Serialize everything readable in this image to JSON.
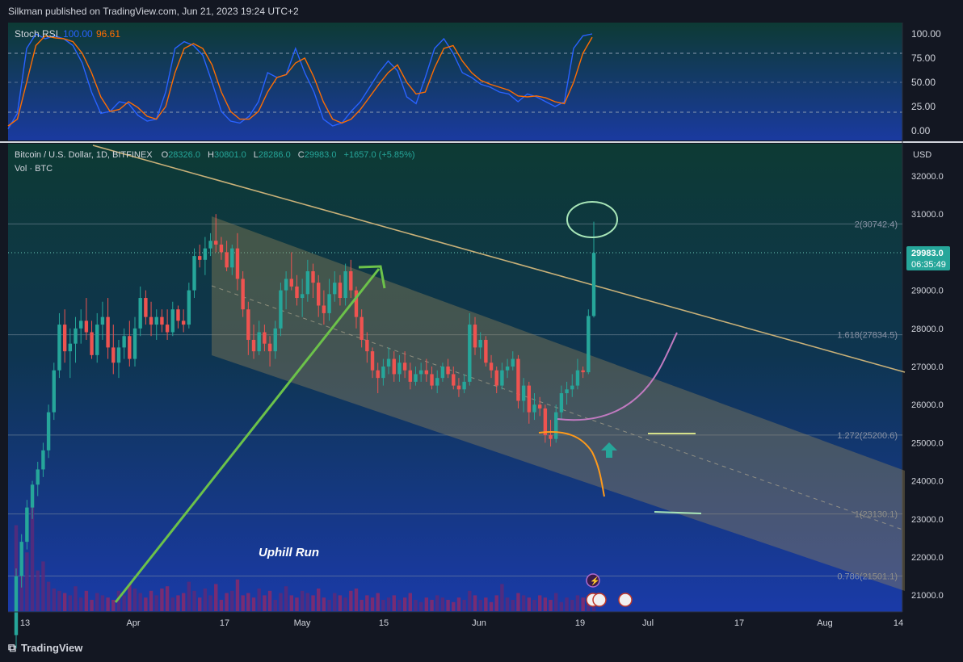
{
  "header": {
    "published": "Silkman published on TradingView.com, Jun 21, 2023 19:24 UTC+2"
  },
  "footer": {
    "brand": "TradingView"
  },
  "rsi": {
    "label": "Stoch RSI",
    "k_value": "100.00",
    "d_value": "96.61",
    "k_color": "#2962ff",
    "d_color": "#ff6d00",
    "axis": [
      "100.00",
      "75.00",
      "50.00",
      "25.00",
      "0.00"
    ]
  },
  "main": {
    "symbol_line": "Bitcoin / U.S. Dollar, 1D, BITFINEX",
    "o_label": "O",
    "o_value": "28326.0",
    "h_label": "H",
    "h_value": "30801.0",
    "l_label": "L",
    "l_value": "28286.0",
    "c_label": "C",
    "c_value": "29983.0",
    "change": "+1657.0 (+5.85%)",
    "vol_label": "Vol · BTC",
    "currency": "USD",
    "price_tag": "29983.0",
    "countdown": "06:35:49",
    "annotation": "Uphill Run",
    "up_color": "#26a69a",
    "down_color": "#ef5350"
  },
  "chart_data": {
    "type": "candlestick",
    "symbol": "Bitcoin / U.S. Dollar",
    "timeframe": "1D",
    "exchange": "BITFINEX",
    "y_ticks": [
      32000,
      31000,
      30000,
      29000,
      28000,
      27000,
      26000,
      25000,
      24000,
      23000,
      22000,
      21000
    ],
    "y_tick_labels": [
      "32000.0",
      "31000.0",
      "30000.0",
      "29000.0",
      "28000.0",
      "27000.0",
      "26000.0",
      "25000.0",
      "24000.0",
      "23000.0",
      "22000.0",
      "21000.0"
    ],
    "x_tick_labels": [
      "13",
      "Apr",
      "17",
      "May",
      "15",
      "Jun",
      "19",
      "Jul",
      "17",
      "Aug",
      "14"
    ],
    "fib_levels": [
      {
        "label": "2(30742.4)",
        "value": 30742.4
      },
      {
        "label": "1.618(27834.5)",
        "value": 27834.5
      },
      {
        "label": "1.272(25200.6)",
        "value": 25200.6
      },
      {
        "label": "1(23130.1)",
        "value": 23130.1
      },
      {
        "label": "0.786(21501.1)",
        "value": 21501.1
      }
    ],
    "last_candle": {
      "open": 28326.0,
      "high": 30801.0,
      "low": 28286.0,
      "close": 29983.0
    },
    "candles": [
      [
        19950,
        21700,
        19600,
        21500
      ],
      [
        21500,
        22600,
        21200,
        22400
      ],
      [
        22400,
        23500,
        22200,
        23300
      ],
      [
        23300,
        24000,
        23000,
        23900
      ],
      [
        23900,
        24500,
        23600,
        24300
      ],
      [
        24300,
        25000,
        24100,
        24800
      ],
      [
        24800,
        26000,
        24600,
        25800
      ],
      [
        25800,
        27100,
        25600,
        26900
      ],
      [
        26900,
        28400,
        26700,
        28100
      ],
      [
        28100,
        28500,
        27100,
        27400
      ],
      [
        27400,
        28000,
        26700,
        27600
      ],
      [
        27600,
        28300,
        27100,
        28000
      ],
      [
        28000,
        28500,
        27600,
        28200
      ],
      [
        28200,
        28800,
        27700,
        27900
      ],
      [
        27900,
        28200,
        27200,
        27300
      ],
      [
        27300,
        28400,
        27100,
        28100
      ],
      [
        28100,
        28700,
        27700,
        28300
      ],
      [
        28300,
        28800,
        27200,
        27500
      ],
      [
        27500,
        28100,
        26800,
        27100
      ],
      [
        27100,
        27700,
        26700,
        27500
      ],
      [
        27500,
        28000,
        27200,
        27800
      ],
      [
        27800,
        28200,
        27000,
        27200
      ],
      [
        27200,
        28300,
        27000,
        28000
      ],
      [
        28000,
        29100,
        27800,
        28800
      ],
      [
        28800,
        29000,
        28100,
        28300
      ],
      [
        28300,
        28700,
        27800,
        28100
      ],
      [
        28100,
        28500,
        27700,
        28300
      ],
      [
        28300,
        28500,
        27900,
        28100
      ],
      [
        28100,
        28500,
        27700,
        27900
      ],
      [
        27900,
        28700,
        27800,
        28500
      ],
      [
        28500,
        28600,
        28000,
        28200
      ],
      [
        28200,
        28500,
        27900,
        28100
      ],
      [
        28100,
        29200,
        28000,
        29000
      ],
      [
        29000,
        30100,
        28800,
        29900
      ],
      [
        29900,
        30200,
        29600,
        29800
      ],
      [
        29800,
        30400,
        29400,
        30100
      ],
      [
        30100,
        30500,
        29900,
        30300
      ],
      [
        30300,
        31000,
        30000,
        30200
      ],
      [
        30200,
        30400,
        29800,
        30000
      ],
      [
        30000,
        30300,
        29500,
        29600
      ],
      [
        29600,
        30200,
        29400,
        30100
      ],
      [
        30100,
        30500,
        29000,
        29300
      ],
      [
        29300,
        29500,
        28300,
        28500
      ],
      [
        28500,
        28700,
        27300,
        27700
      ],
      [
        27700,
        28100,
        27200,
        27400
      ],
      [
        27400,
        28200,
        27300,
        27900
      ],
      [
        27900,
        28100,
        27400,
        27600
      ],
      [
        27600,
        27800,
        27000,
        27400
      ],
      [
        27400,
        28200,
        27200,
        28000
      ],
      [
        28000,
        29200,
        27800,
        29000
      ],
      [
        29000,
        29500,
        28500,
        29300
      ],
      [
        29300,
        30000,
        29000,
        29100
      ],
      [
        29100,
        29400,
        28600,
        28800
      ],
      [
        28800,
        29300,
        28300,
        28900
      ],
      [
        28900,
        29800,
        28700,
        29500
      ],
      [
        29500,
        29700,
        28800,
        29200
      ],
      [
        29200,
        29400,
        28300,
        28600
      ],
      [
        28600,
        29000,
        28100,
        28400
      ],
      [
        28400,
        29300,
        28200,
        28900
      ],
      [
        28900,
        29500,
        28700,
        29200
      ],
      [
        29200,
        29400,
        28600,
        28800
      ],
      [
        28800,
        29700,
        28600,
        29500
      ],
      [
        29500,
        29800,
        28800,
        29000
      ],
      [
        29000,
        29100,
        28000,
        28300
      ],
      [
        28300,
        28500,
        27500,
        27700
      ],
      [
        27700,
        27900,
        27100,
        27400
      ],
      [
        27400,
        27500,
        26700,
        26900
      ],
      [
        26900,
        27100,
        26300,
        26700
      ],
      [
        26700,
        27200,
        26500,
        27000
      ],
      [
        27000,
        27500,
        26800,
        27200
      ],
      [
        27200,
        27400,
        26600,
        26800
      ],
      [
        26800,
        27300,
        26600,
        27100
      ],
      [
        27100,
        27400,
        26700,
        26900
      ],
      [
        26900,
        27100,
        26400,
        26600
      ],
      [
        26600,
        27000,
        26500,
        26800
      ],
      [
        26800,
        27100,
        26600,
        26900
      ],
      [
        26900,
        27200,
        26600,
        26800
      ],
      [
        26800,
        27000,
        26400,
        26500
      ],
      [
        26500,
        26900,
        26300,
        26700
      ],
      [
        26700,
        27100,
        26600,
        27000
      ],
      [
        27000,
        27200,
        26700,
        26800
      ],
      [
        26800,
        27000,
        26400,
        26500
      ],
      [
        26500,
        26700,
        26200,
        26400
      ],
      [
        26400,
        26800,
        26300,
        26600
      ],
      [
        26600,
        28400,
        26500,
        28100
      ],
      [
        28100,
        28300,
        27300,
        27500
      ],
      [
        27500,
        27900,
        27200,
        27700
      ],
      [
        27700,
        27800,
        27000,
        27100
      ],
      [
        27100,
        27300,
        26700,
        26900
      ],
      [
        26900,
        27000,
        26300,
        26500
      ],
      [
        26500,
        27100,
        26400,
        26900
      ],
      [
        26900,
        27200,
        26700,
        27000
      ],
      [
        27000,
        27400,
        26900,
        27200
      ],
      [
        27200,
        27300,
        25900,
        26100
      ],
      [
        26100,
        26700,
        25800,
        26500
      ],
      [
        26500,
        26600,
        25500,
        25800
      ],
      [
        25800,
        26300,
        25600,
        26000
      ],
      [
        26000,
        26200,
        25700,
        25900
      ],
      [
        25900,
        26000,
        25000,
        25200
      ],
      [
        25200,
        25600,
        24900,
        25100
      ],
      [
        25100,
        26000,
        25000,
        25800
      ],
      [
        25800,
        26500,
        25600,
        26300
      ],
      [
        26300,
        26600,
        26000,
        26400
      ],
      [
        26400,
        26800,
        26200,
        26500
      ],
      [
        26500,
        27200,
        26400,
        26900
      ],
      [
        26900,
        27000,
        26700,
        26850
      ],
      [
        26850,
        28500,
        26800,
        28326
      ],
      [
        28326,
        30801,
        28286,
        29983
      ]
    ],
    "volume": [
      3.8,
      1.6,
      2.6,
      5.5,
      1.8,
      2.2,
      1.3,
      1.0,
      0.9,
      0.8,
      0.7,
      1.1,
      0.6,
      0.9,
      0.5,
      0.8,
      0.7,
      0.6,
      0.5,
      0.9,
      0.7,
      1.2,
      1.0,
      0.8,
      0.6,
      0.9,
      0.7,
      1.0,
      1.1,
      0.6,
      0.7,
      0.8,
      1.3,
      0.9,
      0.6,
      1.0,
      0.7,
      1.2,
      0.5,
      0.8,
      0.9,
      1.4,
      0.7,
      0.8,
      0.6,
      1.0,
      0.7,
      0.9,
      0.5,
      0.8,
      1.1,
      0.7,
      0.6,
      0.9,
      0.8,
      0.7,
      1.0,
      0.6,
      0.5,
      0.8,
      0.7,
      0.6,
      0.9,
      1.0,
      0.5,
      0.7,
      0.6,
      0.8,
      0.5,
      0.6,
      0.7,
      0.5,
      0.6,
      0.8,
      0.5,
      0.4,
      0.6,
      0.5,
      0.7,
      0.6,
      0.5,
      0.4,
      0.6,
      0.5,
      0.9,
      0.7,
      0.5,
      0.6,
      0.4,
      0.7,
      1.2,
      0.6,
      0.5,
      0.8,
      0.7,
      0.6,
      0.5,
      0.7,
      0.6,
      0.5,
      0.8,
      0.4,
      0.6,
      0.5,
      0.7,
      0.6,
      0.5,
      0.6
    ],
    "stoch_k": [
      2,
      18,
      85,
      100,
      95,
      98,
      95,
      88,
      70,
      40,
      18,
      20,
      30,
      28,
      16,
      10,
      12,
      40,
      85,
      92,
      88,
      78,
      50,
      20,
      10,
      8,
      15,
      30,
      60,
      55,
      58,
      85,
      60,
      40,
      12,
      5,
      8,
      20,
      30,
      45,
      60,
      72,
      62,
      35,
      28,
      55,
      85,
      95,
      80,
      60,
      55,
      48,
      45,
      40,
      38,
      30,
      38,
      35,
      30,
      25,
      30,
      85,
      98,
      100
    ],
    "stoch_d": [
      5,
      12,
      50,
      88,
      98,
      96,
      95,
      92,
      80,
      60,
      35,
      20,
      22,
      30,
      24,
      15,
      12,
      25,
      60,
      85,
      90,
      85,
      68,
      40,
      20,
      12,
      12,
      20,
      40,
      55,
      58,
      70,
      75,
      55,
      30,
      12,
      8,
      12,
      22,
      35,
      48,
      60,
      68,
      50,
      38,
      40,
      65,
      85,
      88,
      72,
      60,
      52,
      48,
      45,
      42,
      36,
      35,
      36,
      34,
      30,
      28,
      50,
      80,
      96.61
    ]
  },
  "colors": {
    "background": "#131722",
    "trendline": "#c8b078",
    "channel_fill": "#9a8a5a",
    "arrow": "#5cb85c",
    "circle": "#a8e6b8"
  }
}
